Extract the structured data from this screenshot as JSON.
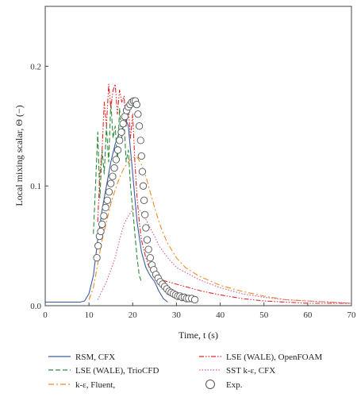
{
  "chart_data": {
    "type": "line",
    "title": "",
    "xlabel": "Time, t (s)",
    "ylabel": "Local mixing scalar, Θ (−)",
    "xlim": [
      0,
      70
    ],
    "ylim": [
      0,
      0.25
    ],
    "xticks": [
      "0",
      "10",
      "20",
      "30",
      "40",
      "50",
      "60",
      "70"
    ],
    "yticks": [
      "0.0",
      "0.1",
      "0.2"
    ],
    "grid": false,
    "legend_position": "bottom",
    "series": [
      {
        "name": "RSM, CFX",
        "style": "solid",
        "color": "#3b5ba5",
        "x": [
          0,
          8,
          9,
          10,
          11,
          12,
          13,
          14,
          15,
          16,
          17,
          18,
          18.5,
          19,
          19.5,
          20,
          20.5,
          21,
          22,
          23,
          24,
          25,
          26,
          27,
          28
        ],
        "y": [
          0.003,
          0.003,
          0.004,
          0.01,
          0.025,
          0.055,
          0.08,
          0.1,
          0.12,
          0.135,
          0.145,
          0.15,
          0.155,
          0.15,
          0.13,
          0.11,
          0.09,
          0.07,
          0.045,
          0.032,
          0.025,
          0.02,
          0.012,
          0.006,
          0.003
        ]
      },
      {
        "name": "LSE (WALE), TrioCFD",
        "style": "dashed",
        "color": "#2e8b3a",
        "x": [
          11,
          11.5,
          12,
          12.5,
          13,
          13.5,
          14,
          14.5,
          15,
          15.5,
          16,
          16.5,
          17,
          17.5,
          18,
          18.5,
          19,
          19.5,
          20,
          20.5,
          21,
          21.5,
          22
        ],
        "y": [
          0.06,
          0.1,
          0.145,
          0.09,
          0.13,
          0.11,
          0.15,
          0.12,
          0.17,
          0.14,
          0.15,
          0.12,
          0.165,
          0.14,
          0.155,
          0.12,
          0.13,
          0.1,
          0.08,
          0.06,
          0.04,
          0.025,
          0.02
        ]
      },
      {
        "name": "k-ε, Fluent,",
        "style": "dashdot",
        "color": "#f08a24",
        "x": [
          10,
          11,
          12,
          13,
          14,
          15,
          16,
          17,
          18,
          19,
          20,
          21,
          22,
          23,
          24,
          25,
          26,
          27,
          28,
          30,
          32,
          35,
          40,
          45,
          50,
          55,
          60,
          65,
          70
        ],
        "y": [
          0.005,
          0.015,
          0.035,
          0.055,
          0.07,
          0.085,
          0.097,
          0.107,
          0.115,
          0.12,
          0.124,
          0.124,
          0.118,
          0.108,
          0.095,
          0.082,
          0.07,
          0.06,
          0.052,
          0.04,
          0.032,
          0.025,
          0.017,
          0.012,
          0.008,
          0.005,
          0.004,
          0.003,
          0.002
        ]
      },
      {
        "name": "LSE (WALE), OpenFOAM",
        "style": "dashdotdot",
        "color": "#e02828",
        "x": [
          12,
          12.5,
          13,
          13.5,
          14,
          14.5,
          15,
          15.5,
          16,
          16.5,
          17,
          17.5,
          18,
          18.5,
          19,
          19.5,
          20,
          20.5,
          21,
          21.5,
          22,
          23,
          24,
          25,
          26,
          28,
          30,
          33,
          36,
          40,
          45,
          50,
          55,
          60,
          65,
          70
        ],
        "y": [
          0.07,
          0.11,
          0.13,
          0.17,
          0.15,
          0.185,
          0.165,
          0.18,
          0.185,
          0.16,
          0.18,
          0.17,
          0.175,
          0.15,
          0.165,
          0.14,
          0.16,
          0.12,
          0.09,
          0.07,
          0.055,
          0.04,
          0.03,
          0.025,
          0.022,
          0.02,
          0.018,
          0.015,
          0.012,
          0.009,
          0.006,
          0.004,
          0.003,
          0.002,
          0.002,
          0.002
        ]
      },
      {
        "name": "SST k-ε, CFX",
        "style": "dotted",
        "color": "#d05aa5",
        "x": [
          12,
          14,
          16,
          17,
          18,
          19,
          20,
          21,
          22,
          22.5,
          23,
          24,
          25,
          26,
          27,
          28,
          30,
          35,
          40,
          45,
          50,
          55,
          60,
          65,
          70
        ],
        "y": [
          0.005,
          0.02,
          0.04,
          0.055,
          0.068,
          0.075,
          0.08,
          0.082,
          0.078,
          0.075,
          0.072,
          0.065,
          0.058,
          0.05,
          0.045,
          0.04,
          0.032,
          0.022,
          0.015,
          0.01,
          0.007,
          0.005,
          0.004,
          0.003,
          0.002
        ]
      },
      {
        "name": "Exp.",
        "style": "markers",
        "color": "#555555",
        "x": [
          11.8,
          12.1,
          12.4,
          12.7,
          13.0,
          13.4,
          13.8,
          14.2,
          14.6,
          15.0,
          15.4,
          15.8,
          16.2,
          16.6,
          17.0,
          17.4,
          17.8,
          18.2,
          18.6,
          19.0,
          19.4,
          19.8,
          20.2,
          20.6,
          20.9,
          21.2,
          21.5,
          21.8,
          22.0,
          22.2,
          22.4,
          22.6,
          22.8,
          23.0,
          23.3,
          23.6,
          24.0,
          24.4,
          24.8,
          25.3,
          25.8,
          26.3,
          26.8,
          27.3,
          27.8,
          28.3,
          28.8,
          29.3,
          29.8,
          30.3,
          30.8,
          31.3,
          31.8,
          32.3,
          32.8,
          33.5,
          34.2
        ],
        "y": [
          0.04,
          0.05,
          0.058,
          0.062,
          0.068,
          0.075,
          0.082,
          0.088,
          0.095,
          0.102,
          0.108,
          0.115,
          0.122,
          0.13,
          0.138,
          0.145,
          0.152,
          0.158,
          0.163,
          0.166,
          0.168,
          0.17,
          0.171,
          0.171,
          0.168,
          0.16,
          0.15,
          0.138,
          0.125,
          0.112,
          0.1,
          0.088,
          0.076,
          0.065,
          0.055,
          0.047,
          0.04,
          0.034,
          0.03,
          0.026,
          0.023,
          0.02,
          0.018,
          0.016,
          0.014,
          0.012,
          0.011,
          0.01,
          0.009,
          0.008,
          0.008,
          0.007,
          0.007,
          0.006,
          0.006,
          0.006,
          0.005
        ]
      }
    ]
  }
}
